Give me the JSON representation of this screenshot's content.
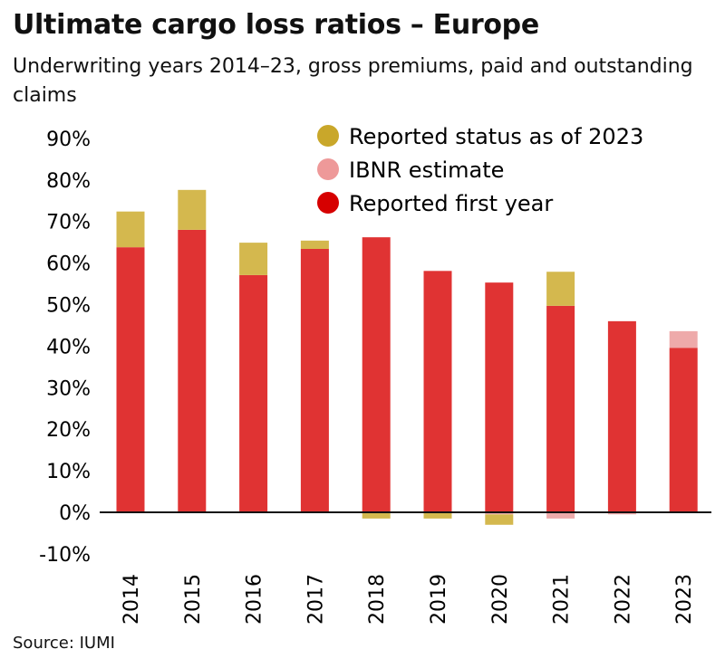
{
  "chart_data": {
    "type": "bar",
    "stacked": true,
    "title": "Ultimate cargo loss ratios – Europe",
    "subtitle": "Underwriting years 2014–23, gross premiums, paid and outstanding claims",
    "source": "Source: IUMI",
    "categories": [
      "2014",
      "2015",
      "2016",
      "2017",
      "2018",
      "2019",
      "2020",
      "2021",
      "2022",
      "2023"
    ],
    "ylim": [
      -10,
      90
    ],
    "yticks": [
      "90%",
      "80%",
      "70%",
      "60%",
      "50%",
      "40%",
      "30%",
      "20%",
      "10%",
      "0%",
      "-10%"
    ],
    "ytick_values": [
      90,
      80,
      70,
      60,
      50,
      40,
      30,
      20,
      10,
      0,
      -10
    ],
    "grid": false,
    "legend_position": "top-right",
    "series": [
      {
        "name": "Reported first year",
        "color": "#e03333",
        "values": [
          63.8,
          68.0,
          57.1,
          63.4,
          66.2,
          58.1,
          55.3,
          49.7,
          46.0,
          39.6
        ]
      },
      {
        "name": "IBNR estimate",
        "color": "#eeaaaa",
        "values": [
          0,
          0,
          0,
          0,
          0,
          0,
          -0.5,
          -1.5,
          -0.5,
          4.0
        ]
      },
      {
        "name": "Reported status as of 2023",
        "color": "#d4b84e",
        "values": [
          8.6,
          9.6,
          7.8,
          2.0,
          -1.5,
          -1.5,
          -2.5,
          8.2,
          0,
          0
        ]
      }
    ],
    "legend": [
      {
        "label": "Reported status as of 2023",
        "color": "#c9a72a"
      },
      {
        "label": "IBNR estimate",
        "color": "#ee9999"
      },
      {
        "label": "Reported first year",
        "color": "#d60000"
      }
    ]
  }
}
